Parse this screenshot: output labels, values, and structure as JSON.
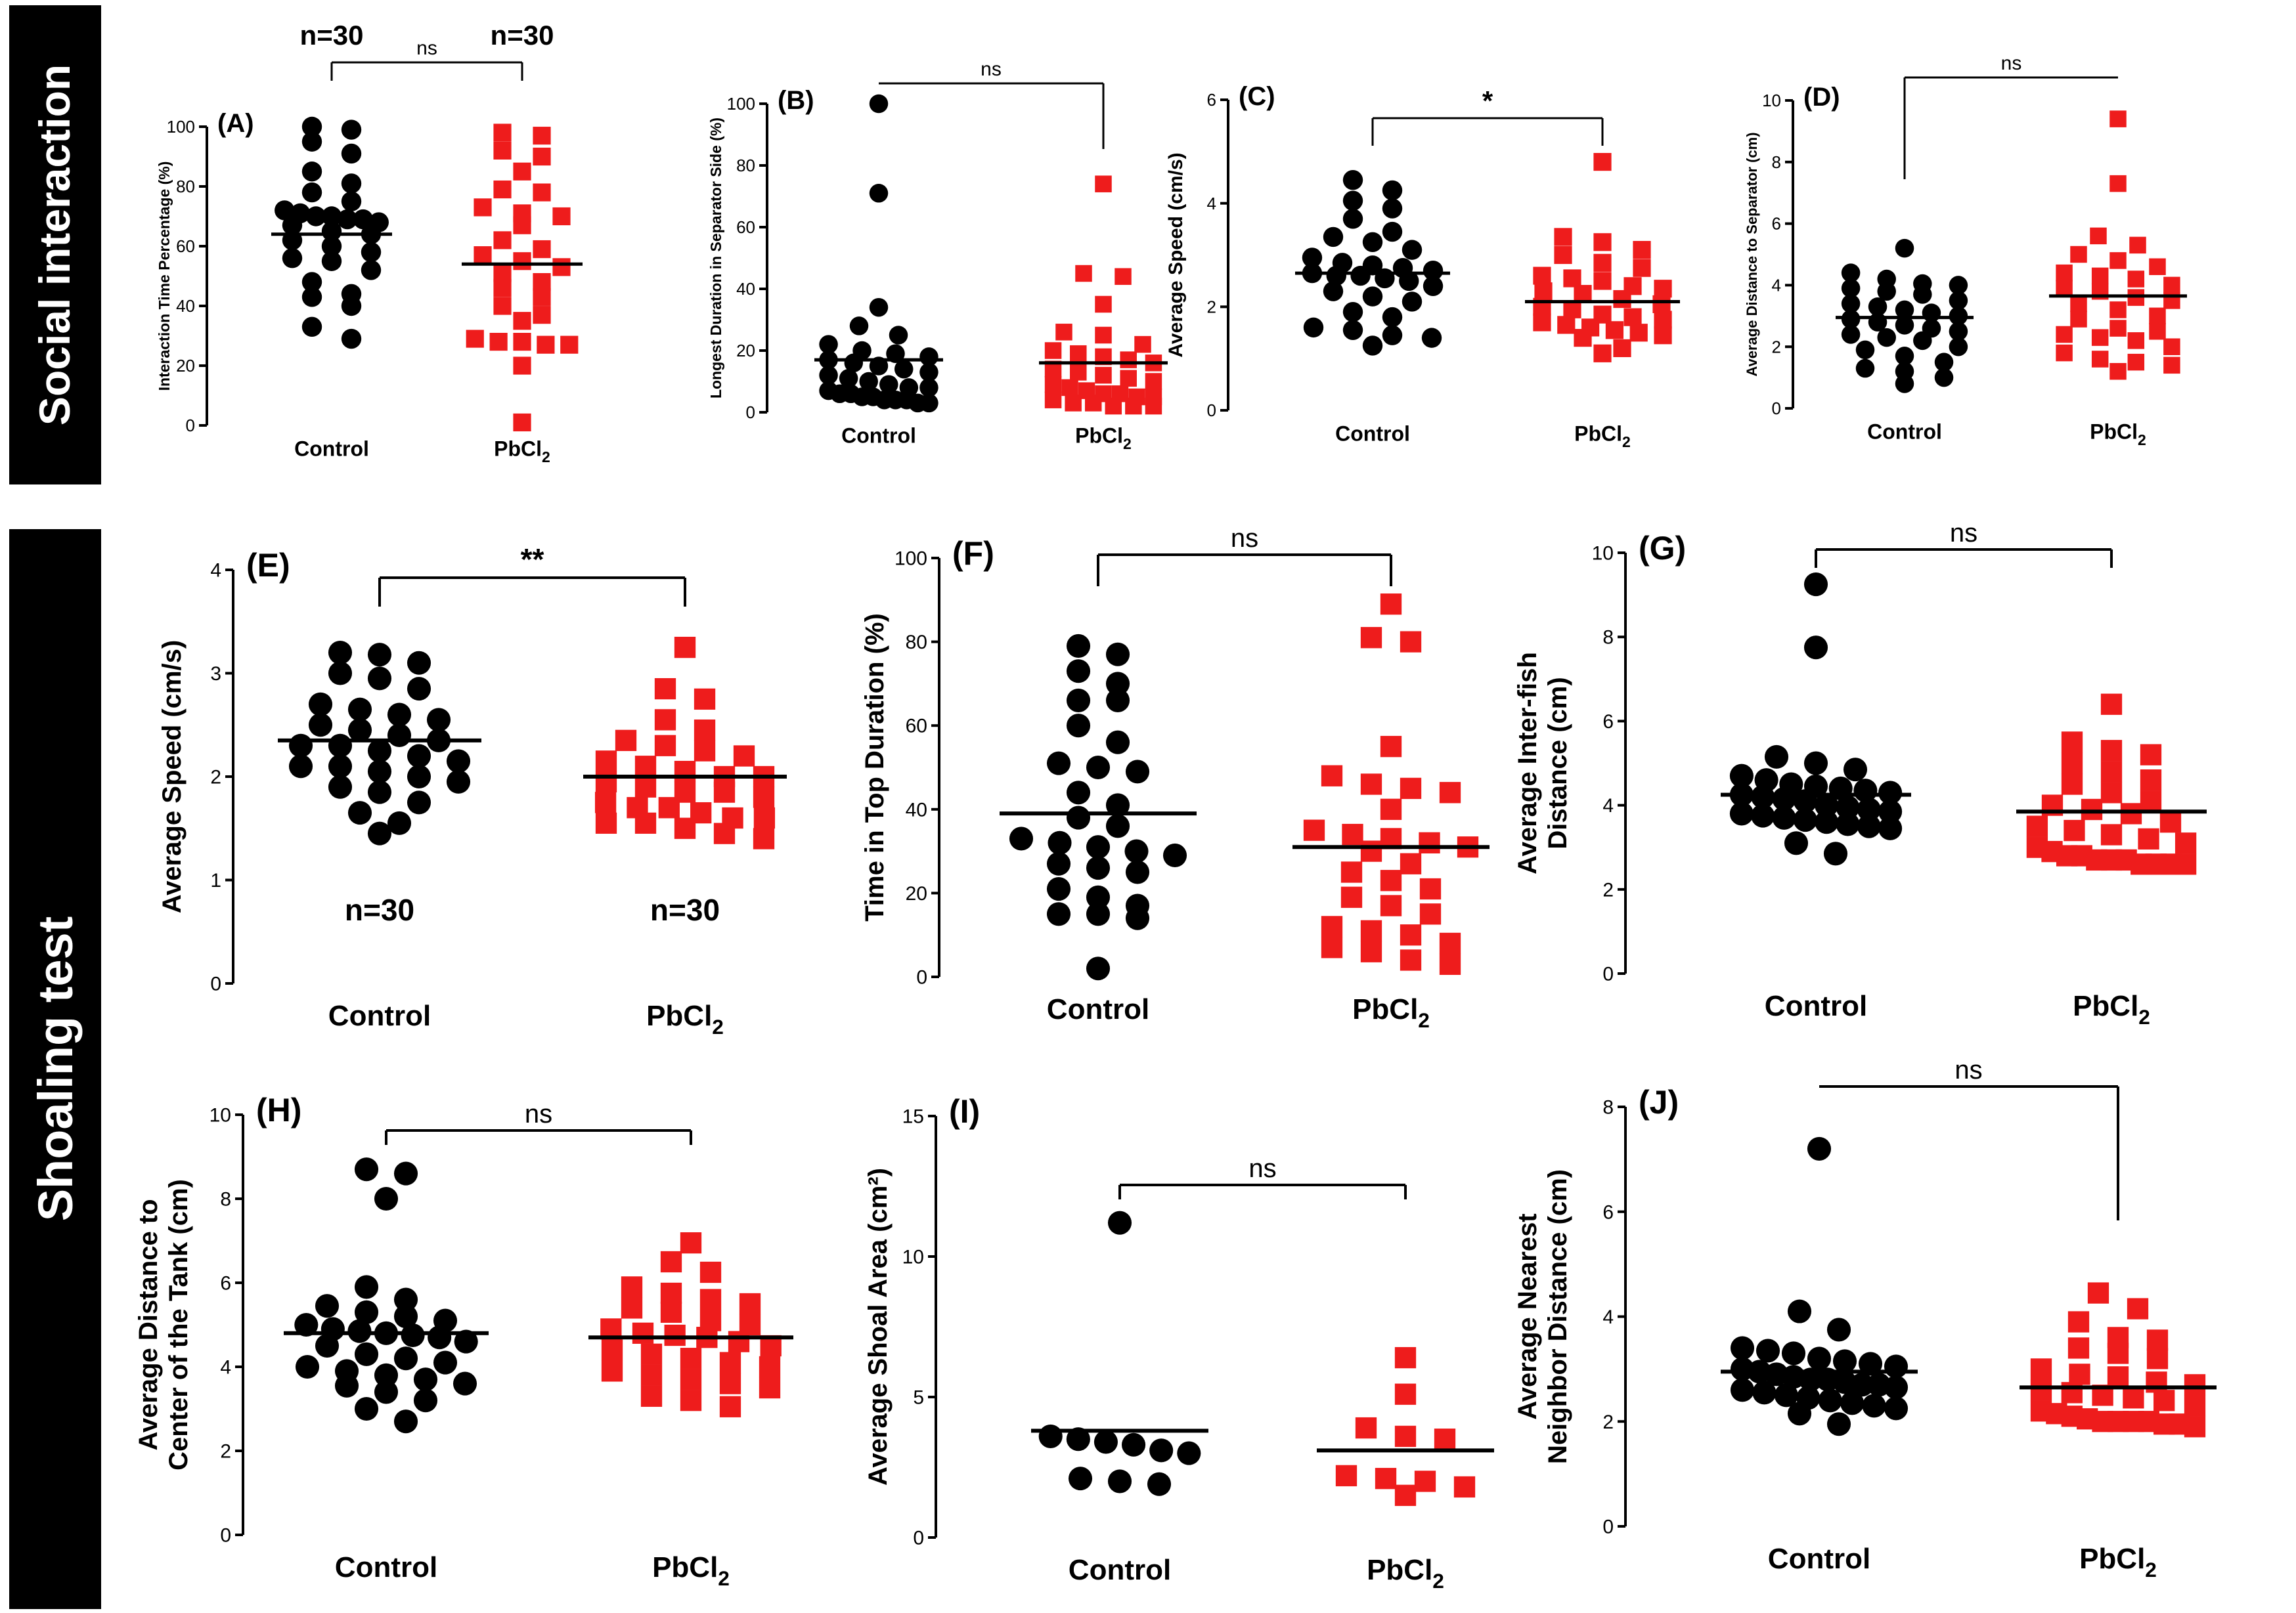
{
  "sections": [
    {
      "label": "Social interaction"
    },
    {
      "label": "Shoaling test"
    }
  ],
  "colors": {
    "control": "#000000",
    "treated": "#ee1c1c",
    "section_bg": "#000000"
  },
  "chart_data": [
    {
      "id": "A",
      "panel_label": "(A)",
      "type": "scatter",
      "ylabel": "Interaction Time Percentage (%)",
      "ylim": [
        0,
        100
      ],
      "ticks": [
        0,
        20,
        40,
        60,
        80,
        100
      ],
      "categories": [
        "Control",
        "PbCl2"
      ],
      "significance": "ns",
      "n_labels": [
        "n=30",
        "n=30"
      ],
      "series": [
        {
          "name": "Control",
          "mean": 64,
          "values": [
            100,
            99,
            95,
            91,
            85,
            81,
            78,
            75,
            72,
            71,
            70,
            70,
            69,
            69,
            68,
            67,
            65,
            64,
            62,
            60,
            58,
            56,
            55,
            52,
            48,
            44,
            43,
            40,
            33,
            29
          ]
        },
        {
          "name": "PbCl2",
          "mean": 54,
          "values": [
            98,
            97,
            92,
            90,
            85,
            79,
            78,
            73,
            71,
            70,
            67,
            62,
            59,
            57,
            55,
            53,
            51,
            48,
            46,
            43,
            40,
            37,
            35,
            29,
            28,
            28,
            27,
            27,
            20,
            1
          ]
        }
      ]
    },
    {
      "id": "B",
      "panel_label": "(B)",
      "type": "scatter",
      "ylabel": "Longest  Duration in Separator Side (%)",
      "ylim": [
        0,
        100
      ],
      "ticks": [
        0,
        20,
        40,
        60,
        80,
        100
      ],
      "categories": [
        "Control",
        "PbCl2"
      ],
      "significance": "ns",
      "series": [
        {
          "name": "Control",
          "mean": 17,
          "values": [
            100,
            71,
            34,
            28,
            25,
            22,
            20,
            19,
            18,
            17,
            16,
            15,
            14,
            13,
            12,
            11,
            10,
            9,
            8,
            8,
            7,
            6,
            6,
            5,
            5,
            4,
            4,
            4,
            3,
            3
          ]
        },
        {
          "name": "PbCl2",
          "mean": 16,
          "values": [
            74,
            45,
            44,
            35,
            26,
            25,
            22,
            20,
            19,
            18,
            17,
            16,
            14,
            13,
            12,
            11,
            10,
            9,
            8,
            7,
            6,
            6,
            5,
            5,
            4,
            3,
            3,
            2,
            2,
            2
          ]
        }
      ]
    },
    {
      "id": "C",
      "panel_label": "(C)",
      "type": "scatter",
      "ylabel": "Average Speed (cm/s)",
      "ylim": [
        0,
        6
      ],
      "ticks": [
        0,
        2,
        4,
        6
      ],
      "categories": [
        "Control",
        "PbCl2"
      ],
      "significance": "*",
      "series": [
        {
          "name": "Control",
          "mean": 2.65,
          "values": [
            4.45,
            4.25,
            4.05,
            3.9,
            3.7,
            3.45,
            3.35,
            3.25,
            3.1,
            2.95,
            2.85,
            2.8,
            2.75,
            2.7,
            2.65,
            2.6,
            2.6,
            2.55,
            2.5,
            2.4,
            2.3,
            2.2,
            2.1,
            1.9,
            1.8,
            1.6,
            1.55,
            1.45,
            1.4,
            1.25
          ]
        },
        {
          "name": "PbCl2",
          "mean": 2.1,
          "values": [
            4.8,
            3.35,
            3.25,
            3.1,
            3.0,
            2.85,
            2.75,
            2.6,
            2.55,
            2.5,
            2.4,
            2.35,
            2.3,
            2.25,
            2.15,
            2.05,
            2.0,
            1.95,
            1.85,
            1.8,
            1.75,
            1.7,
            1.65,
            1.6,
            1.55,
            1.5,
            1.45,
            1.4,
            1.2,
            1.1
          ]
        }
      ]
    },
    {
      "id": "D",
      "panel_label": "(D)",
      "type": "scatter",
      "ylabel": "Average Distance to Separator (cm)",
      "ylim": [
        0,
        10
      ],
      "ticks": [
        0,
        2,
        4,
        6,
        8,
        10
      ],
      "categories": [
        "Control",
        "PbCl2"
      ],
      "significance": "ns",
      "series": [
        {
          "name": "Control",
          "mean": 2.95,
          "values": [
            5.2,
            4.4,
            4.2,
            4.05,
            4.0,
            3.9,
            3.8,
            3.7,
            3.5,
            3.4,
            3.3,
            3.2,
            3.1,
            3.0,
            2.9,
            2.8,
            2.7,
            2.6,
            2.5,
            2.4,
            2.3,
            2.2,
            2.0,
            1.9,
            1.7,
            1.5,
            1.3,
            1.2,
            1.0,
            0.8
          ]
        },
        {
          "name": "PbCl2",
          "mean": 3.65,
          "values": [
            9.4,
            7.3,
            5.6,
            5.3,
            5.0,
            4.8,
            4.6,
            4.4,
            4.3,
            4.2,
            4.0,
            3.9,
            3.8,
            3.6,
            3.5,
            3.4,
            3.2,
            3.0,
            2.9,
            2.6,
            2.5,
            2.4,
            2.3,
            2.2,
            2.0,
            1.8,
            1.6,
            1.5,
            1.4,
            1.2
          ]
        }
      ]
    },
    {
      "id": "E",
      "panel_label": "(E)",
      "type": "scatter",
      "ylabel": "Average Speed (cm/s)",
      "ylim": [
        0,
        4
      ],
      "ticks": [
        0,
        1,
        2,
        3,
        4
      ],
      "categories": [
        "Control",
        "PbCl2"
      ],
      "significance": "**",
      "n_labels": [
        "n=30",
        "n=30"
      ],
      "series": [
        {
          "name": "Control",
          "mean": 2.35,
          "values": [
            3.2,
            3.18,
            3.1,
            3.0,
            2.95,
            2.85,
            2.7,
            2.65,
            2.6,
            2.55,
            2.5,
            2.45,
            2.4,
            2.35,
            2.3,
            2.3,
            2.25,
            2.2,
            2.15,
            2.1,
            2.1,
            2.05,
            2.0,
            1.95,
            1.9,
            1.85,
            1.75,
            1.65,
            1.55,
            1.45
          ]
        },
        {
          "name": "PbCl2",
          "mean": 2.0,
          "values": [
            3.25,
            2.85,
            2.75,
            2.55,
            2.45,
            2.35,
            2.3,
            2.25,
            2.2,
            2.15,
            2.1,
            2.05,
            2.0,
            2.0,
            1.95,
            1.9,
            1.85,
            1.85,
            1.8,
            1.75,
            1.7,
            1.7,
            1.65,
            1.6,
            1.6,
            1.55,
            1.55,
            1.5,
            1.45,
            1.4
          ]
        }
      ]
    },
    {
      "id": "F",
      "panel_label": "(F)",
      "type": "scatter",
      "ylabel": "Time in Top Duration (%)",
      "ylim": [
        0,
        100
      ],
      "ticks": [
        0,
        20,
        40,
        60,
        80,
        100
      ],
      "categories": [
        "Control",
        "PbCl2"
      ],
      "significance": "ns",
      "series": [
        {
          "name": "Control",
          "mean": 39,
          "values": [
            79,
            77,
            73,
            70,
            66,
            66,
            60,
            56,
            51,
            50,
            49,
            44,
            41,
            38,
            36,
            33,
            32,
            31,
            30,
            29,
            27,
            26,
            25,
            21,
            19,
            17,
            15,
            15,
            14,
            2
          ]
        },
        {
          "name": "PbCl2",
          "mean": 31,
          "values": [
            89,
            81,
            80,
            55,
            48,
            46,
            45,
            44,
            40,
            35,
            34,
            33,
            32,
            31,
            30,
            27,
            25,
            23,
            21,
            19,
            17,
            15,
            12,
            11,
            10,
            8,
            7,
            6,
            4,
            3
          ]
        }
      ]
    },
    {
      "id": "G",
      "panel_label": "(G)",
      "type": "scatter",
      "ylabel": "Average Inter-fish Distance (cm)",
      "ylabel_lines": [
        "Average Inter-fish",
        "Distance (cm)"
      ],
      "ylim": [
        0,
        10
      ],
      "ticks": [
        0,
        2,
        4,
        6,
        8,
        10
      ],
      "categories": [
        "Control",
        "PbCl2"
      ],
      "significance": "ns",
      "series": [
        {
          "name": "Control",
          "mean": 4.25,
          "values": [
            9.25,
            7.75,
            5.15,
            5.0,
            4.85,
            4.7,
            4.6,
            4.5,
            4.45,
            4.4,
            4.35,
            4.3,
            4.25,
            4.2,
            4.15,
            4.1,
            4.0,
            3.95,
            3.9,
            3.85,
            3.8,
            3.75,
            3.7,
            3.65,
            3.6,
            3.55,
            3.5,
            3.45,
            3.1,
            2.85
          ]
        },
        {
          "name": "PbCl2",
          "mean": 3.85,
          "values": [
            6.4,
            5.5,
            5.3,
            5.2,
            5.0,
            4.8,
            4.6,
            4.5,
            4.3,
            4.1,
            4.0,
            3.9,
            3.8,
            3.6,
            3.5,
            3.4,
            3.3,
            3.2,
            3.1,
            3.0,
            2.9,
            2.8,
            2.8,
            2.7,
            2.7,
            2.7,
            2.6,
            2.6,
            2.6,
            2.6
          ]
        }
      ]
    },
    {
      "id": "H",
      "panel_label": "(H)",
      "type": "scatter",
      "ylabel": "Average Distance to Center of the Tank (cm)",
      "ylabel_lines": [
        "Average Distance to",
        "Center of the Tank (cm)"
      ],
      "ylim": [
        0,
        10
      ],
      "ticks": [
        0,
        2,
        4,
        6,
        8,
        10
      ],
      "categories": [
        "Control",
        "PbCl2"
      ],
      "significance": "ns",
      "series": [
        {
          "name": "Control",
          "mean": 4.8,
          "values": [
            8.7,
            8.6,
            8.0,
            5.9,
            5.6,
            5.45,
            5.3,
            5.2,
            5.1,
            5.0,
            4.9,
            4.85,
            4.8,
            4.75,
            4.7,
            4.6,
            4.5,
            4.3,
            4.2,
            4.1,
            4.0,
            3.9,
            3.8,
            3.7,
            3.6,
            3.55,
            3.4,
            3.2,
            3.0,
            2.7
          ]
        },
        {
          "name": "PbCl2",
          "mean": 4.7,
          "values": [
            6.95,
            6.5,
            6.25,
            5.9,
            5.75,
            5.6,
            5.5,
            5.4,
            5.3,
            5.1,
            5.0,
            4.9,
            4.8,
            4.75,
            4.7,
            4.6,
            4.5,
            4.4,
            4.3,
            4.2,
            4.1,
            4.0,
            3.9,
            3.8,
            3.7,
            3.6,
            3.5,
            3.3,
            3.2,
            3.05
          ]
        }
      ]
    },
    {
      "id": "I",
      "panel_label": "(I)",
      "type": "scatter",
      "ylabel": "Average Shoal Area (cm²)",
      "ylim": [
        0,
        15
      ],
      "ticks": [
        0,
        5,
        10,
        15
      ],
      "categories": [
        "Control",
        "PbCl2"
      ],
      "significance": "ns",
      "series": [
        {
          "name": "Control",
          "mean": 3.8,
          "values": [
            11.2,
            3.6,
            3.5,
            3.4,
            3.3,
            3.1,
            3.0,
            2.1,
            2.0,
            1.9
          ]
        },
        {
          "name": "PbCl2",
          "mean": 3.1,
          "values": [
            6.4,
            5.1,
            3.9,
            3.6,
            3.5,
            2.2,
            2.1,
            2.0,
            1.8,
            1.5
          ]
        }
      ]
    },
    {
      "id": "J",
      "panel_label": "(J)",
      "type": "scatter",
      "ylabel": "Average Nearest Neighbor Distance (cm)",
      "ylabel_lines": [
        "Average Nearest",
        "Neighbor Distance (cm)"
      ],
      "ylim": [
        0,
        8
      ],
      "ticks": [
        0,
        2,
        4,
        6,
        8
      ],
      "categories": [
        "Control",
        "PbCl2"
      ],
      "significance": "ns",
      "series": [
        {
          "name": "Control",
          "mean": 2.95,
          "values": [
            7.2,
            4.1,
            3.75,
            3.4,
            3.35,
            3.3,
            3.2,
            3.15,
            3.1,
            3.05,
            3.0,
            2.95,
            2.9,
            2.85,
            2.8,
            2.8,
            2.75,
            2.7,
            2.7,
            2.65,
            2.6,
            2.55,
            2.5,
            2.45,
            2.4,
            2.35,
            2.3,
            2.25,
            2.15,
            1.95
          ]
        },
        {
          "name": "PbCl2",
          "mean": 2.65,
          "values": [
            4.45,
            4.15,
            3.9,
            3.6,
            3.55,
            3.4,
            3.3,
            3.2,
            3.0,
            2.9,
            2.85,
            2.75,
            2.7,
            2.6,
            2.55,
            2.5,
            2.45,
            2.4,
            2.3,
            2.2,
            2.15,
            2.1,
            2.05,
            2.0,
            2.0,
            2.0,
            2.0,
            1.95,
            1.95,
            1.9
          ]
        }
      ]
    }
  ]
}
